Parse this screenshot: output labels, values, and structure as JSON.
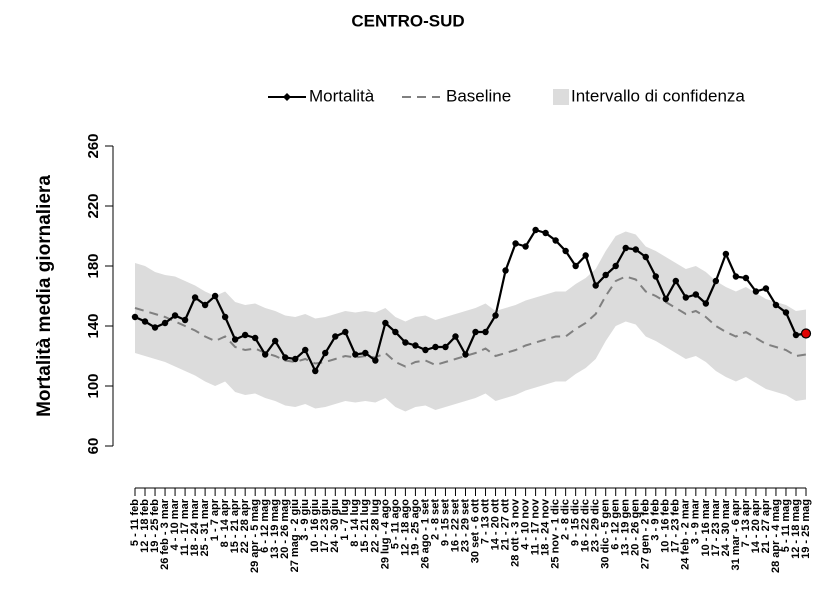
{
  "chart_data": {
    "type": "line",
    "title": "CENTRO-SUD",
    "ylabel": "Mortalità media giornaliera",
    "categories": [
      "5 - 11 feb",
      "12 - 18 feb",
      "19 - 25 feb",
      "26 feb - 3 mar",
      "4 - 10 mar",
      "11 - 17 mar",
      "18 - 24 mar",
      "25 - 31 mar",
      "1 - 7 apr",
      "8 - 14 apr",
      "15 - 21 apr",
      "22 - 28 apr",
      "29 apr - 5 mag",
      "6 - 12 mag",
      "13 - 19 mag",
      "20 - 26 mag",
      "27 mag - 2 giu",
      "3 - 9 giu",
      "10 - 16 giu",
      "17 - 23 giu",
      "24 - 30 giu",
      "1 - 7 lug",
      "8 - 14 lug",
      "15 - 21 lug",
      "22 - 28 lug",
      "29 lug - 4 ago",
      "5 - 11 ago",
      "12 - 18 ago",
      "19 - 25 ago",
      "26 ago - 1 set",
      "2 - 8 set",
      "9 - 15 set",
      "16 - 22 set",
      "23 - 29 set",
      "30 set - 6 ott",
      "7 - 13 ott",
      "14 - 20 ott",
      "21 - 27 ott",
      "28 ott - 3 nov",
      "4 - 10 nov",
      "11 - 17 nov",
      "18 - 24 nov",
      "25 nov - 1 dic",
      "2 - 8 dic",
      "9 - 15 dic",
      "16 - 22 dic",
      "23 - 29 dic",
      "30 dic - 5 gen",
      "6 - 12 gen",
      "13 - 19 gen",
      "20 - 26 gen",
      "27 gen - 2 feb",
      "3 - 9 feb",
      "10 - 16 feb",
      "17 - 23 feb",
      "24 feb - 2 mar",
      "3 - 9 mar",
      "10 - 16 mar",
      "17 - 23 mar",
      "24 - 30 mar",
      "31 mar - 6 apr",
      "7 - 13 apr",
      "14 - 20 apr",
      "21 - 27 apr",
      "28 apr - 4 mag",
      "5 - 11 mag",
      "12 - 18 mag",
      "19 - 25 mag"
    ],
    "series": [
      {
        "name": "Mortalità",
        "color": "#000000",
        "dashed": false,
        "markers": true,
        "values": [
          146,
          143,
          139,
          142,
          147,
          144,
          159,
          154,
          160,
          146,
          131,
          134,
          132,
          121,
          130,
          119,
          118,
          124,
          110,
          122,
          133,
          136,
          121,
          122,
          117,
          142,
          136,
          129,
          127,
          124,
          126,
          126,
          133,
          121,
          136,
          136,
          147,
          177,
          195,
          193,
          204,
          202,
          197,
          190,
          180,
          187,
          167,
          174,
          180,
          192,
          191,
          186,
          173,
          158,
          170,
          159,
          161,
          155,
          170,
          188,
          173,
          172,
          163,
          165,
          154,
          149,
          134,
          135
        ]
      },
      {
        "name": "Baseline",
        "color": "#808080",
        "dashed": true,
        "markers": false,
        "values": [
          152,
          150,
          148,
          146,
          143,
          140,
          137,
          133,
          130,
          133,
          126,
          124,
          125,
          122,
          120,
          117,
          116,
          118,
          115,
          116,
          118,
          120,
          119,
          120,
          119,
          122,
          116,
          113,
          116,
          117,
          114,
          116,
          118,
          120,
          122,
          125,
          120,
          122,
          124,
          127,
          129,
          131,
          133,
          133,
          138,
          142,
          148,
          160,
          170,
          173,
          171,
          163,
          160,
          156,
          152,
          148,
          150,
          146,
          140,
          136,
          133,
          136,
          132,
          128,
          126,
          124,
          120,
          121
        ]
      }
    ],
    "band": {
      "name": "Intervallo di confidenza",
      "color": "#dcdcdc",
      "upper": [
        182,
        180,
        176,
        174,
        173,
        170,
        167,
        163,
        160,
        163,
        156,
        154,
        155,
        152,
        150,
        147,
        146,
        148,
        145,
        146,
        148,
        150,
        149,
        150,
        149,
        152,
        146,
        143,
        146,
        147,
        144,
        146,
        148,
        150,
        152,
        155,
        150,
        152,
        154,
        157,
        159,
        161,
        163,
        163,
        168,
        172,
        178,
        190,
        200,
        203,
        201,
        193,
        190,
        186,
        182,
        178,
        180,
        176,
        170,
        166,
        163,
        166,
        162,
        158,
        156,
        154,
        150,
        151
      ],
      "lower": [
        122,
        120,
        118,
        116,
        113,
        110,
        107,
        103,
        100,
        103,
        96,
        94,
        95,
        92,
        90,
        87,
        86,
        88,
        85,
        86,
        88,
        90,
        89,
        90,
        89,
        92,
        86,
        83,
        86,
        87,
        84,
        86,
        88,
        90,
        92,
        95,
        90,
        92,
        94,
        97,
        99,
        101,
        103,
        103,
        108,
        112,
        118,
        130,
        140,
        143,
        141,
        133,
        130,
        126,
        122,
        118,
        120,
        116,
        110,
        106,
        103,
        106,
        102,
        98,
        96,
        94,
        90,
        91
      ]
    },
    "last_point_color": "#e00000",
    "ylim": [
      60,
      260
    ],
    "yticks": [
      60,
      100,
      140,
      180,
      220,
      260
    ],
    "grid": false,
    "legend": "top-right"
  }
}
